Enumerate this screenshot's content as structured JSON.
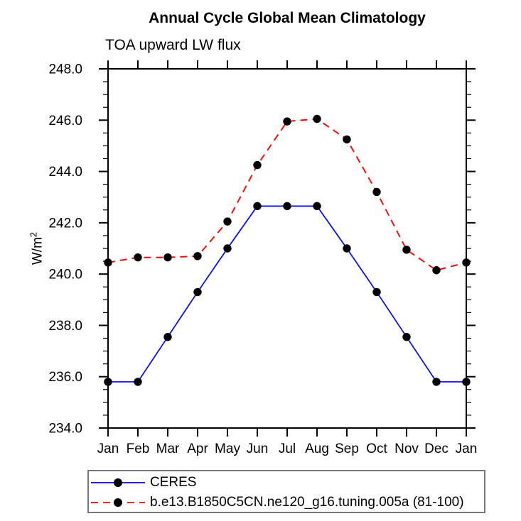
{
  "chart_data": {
    "type": "line",
    "title": "Annual Cycle Global Mean Climatology",
    "subtitle": "TOA upward LW flux",
    "ylabel": {
      "text": "W/m",
      "superscript": "2"
    },
    "categories": [
      "Jan",
      "Feb",
      "Mar",
      "Apr",
      "May",
      "Jun",
      "Jul",
      "Aug",
      "Sep",
      "Oct",
      "Nov",
      "Dec",
      "Jan"
    ],
    "ylim": [
      234.0,
      248.0
    ],
    "ytick_major_step": 2.0,
    "ytick_minor_step": 0.5,
    "ytick_decimals": 1,
    "grid": false,
    "legend_position": "bottom",
    "axis_color": "#000000",
    "marker_shape": "filled-circle",
    "series": [
      {
        "name": "CERES",
        "color": "#0000ff",
        "line_style": "solid",
        "marker_color": "#000000",
        "values": [
          235.8,
          235.8,
          237.55,
          239.3,
          241.0,
          242.65,
          242.65,
          242.65,
          241.0,
          239.3,
          237.55,
          235.8,
          235.8
        ]
      },
      {
        "name": "b.e13.B1850C5CN.ne120_g16.tuning.005a (81-100)",
        "color": "#ff0000",
        "line_style": "dashed",
        "marker_color": "#000000",
        "values": [
          240.45,
          240.65,
          240.65,
          240.7,
          242.05,
          244.25,
          245.95,
          246.05,
          245.25,
          243.2,
          240.95,
          240.15,
          240.45
        ]
      }
    ]
  }
}
